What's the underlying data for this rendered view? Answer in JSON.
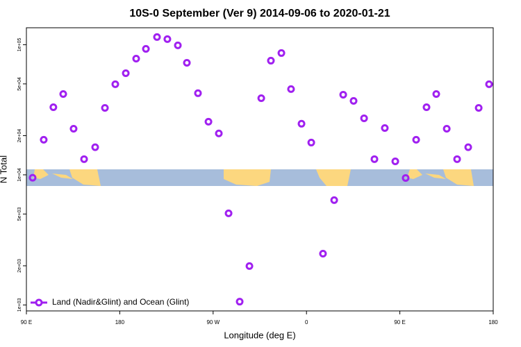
{
  "chart_data": {
    "type": "scatter",
    "title": "10S-0 September (Ver 9)   2014-09-06 to 2020-01-21",
    "x_label": "Longitude (deg E)",
    "y_label": "N Total",
    "log_y": true,
    "legend": "bottom-left",
    "xlim": [
      90,
      540
    ],
    "ylim": [
      900,
      135000
    ],
    "xticks": [
      {
        "value": 90,
        "label": "90 E"
      },
      {
        "value": 180,
        "label": "180"
      },
      {
        "value": 270,
        "label": "90 W"
      },
      {
        "value": 360,
        "label": "0"
      },
      {
        "value": 450,
        "label": "90 E"
      },
      {
        "value": 540,
        "label": "180"
      }
    ],
    "yticks": [
      {
        "value": 1000,
        "label": "1e+03"
      },
      {
        "value": 2000,
        "label": "2e+03"
      },
      {
        "value": 5000,
        "label": "5e+03"
      },
      {
        "value": 10000,
        "label": "1e+04"
      },
      {
        "value": 20000,
        "label": "2e+04"
      },
      {
        "value": 50000,
        "label": "5e+04"
      },
      {
        "value": 100000,
        "label": "1e+05"
      }
    ],
    "series": [
      {
        "name": "Land (Nadir&Glint) and Ocean (Glint)",
        "color": "#a020f0",
        "x": [
          96,
          106.7,
          116,
          125.5,
          135.5,
          145.6,
          156.3,
          165.7,
          175.7,
          185.8,
          195.8,
          205.2,
          215.9,
          225.9,
          236,
          244.7,
          255.4,
          265.5,
          275.5,
          284.9,
          295.6,
          305,
          316.4,
          325.7,
          335.8,
          345.1,
          355.2,
          364.6,
          375.9,
          386.7,
          395.4,
          405.4,
          415.5,
          425.5,
          435.5,
          445.6,
          455.6,
          465.7,
          475.7,
          485.1,
          495.2,
          505.2,
          515.9,
          526,
          536
        ],
        "values": [
          9500,
          18600,
          33100,
          41800,
          22600,
          13200,
          16300,
          32700,
          49700,
          60400,
          78200,
          92900,
          114500,
          110400,
          98900,
          72600,
          42400,
          25600,
          20800,
          5060,
          1060,
          1990,
          38800,
          75400,
          86300,
          45600,
          24700,
          17700,
          2480,
          6390,
          41300,
          37000,
          27200,
          13200,
          22900,
          12700,
          9460,
          18600,
          33100,
          41800,
          22600,
          13200,
          16300,
          32700,
          49700
        ]
      }
    ]
  }
}
